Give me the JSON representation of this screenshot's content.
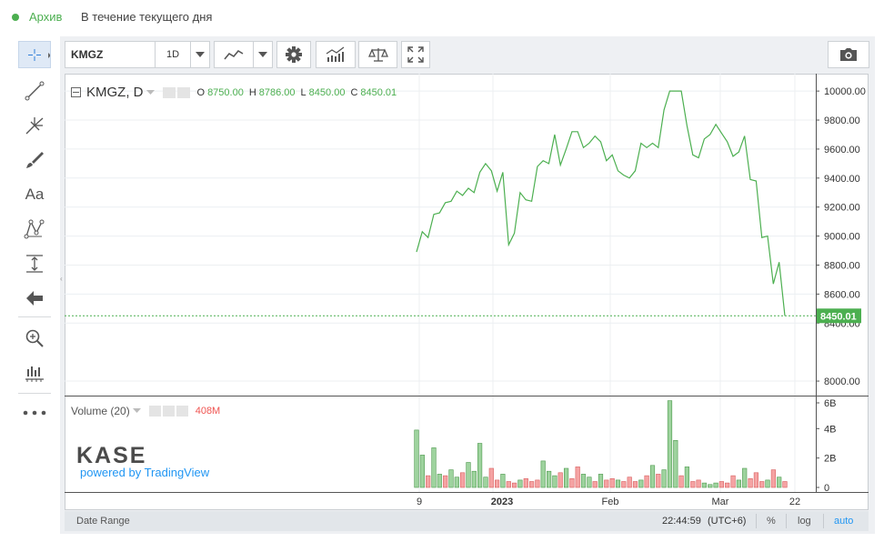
{
  "status": {
    "label": "Архив",
    "description": "В течение текущего дня"
  },
  "toolbar": {
    "symbol": "KMGZ",
    "interval": "1D"
  },
  "legend": {
    "title": "KMGZ, D",
    "o_label": "O",
    "o_value": "8750.00",
    "h_label": "H",
    "h_value": "8786.00",
    "l_label": "L",
    "l_value": "8450.00",
    "c_label": "C",
    "c_value": "8450.01"
  },
  "volume": {
    "label": "Volume (20)",
    "value": "408M"
  },
  "watermark": {
    "logo": "KASE",
    "powered": "powered by TradingView"
  },
  "price_axis": {
    "ticks": [
      "10000.00",
      "9800.00",
      "9600.00",
      "9400.00",
      "9200.00",
      "9000.00",
      "8800.00",
      "8600.00",
      "8400.00",
      "8000.00"
    ],
    "last": "8450.01"
  },
  "volume_axis": {
    "ticks": [
      "6B",
      "4B",
      "2B",
      "0"
    ]
  },
  "time_axis": {
    "ticks": [
      "9",
      "2023",
      "Feb",
      "Mar",
      "22"
    ]
  },
  "footer": {
    "date_range": "Date Range",
    "time": "22:44:59",
    "tz": "(UTC+6)",
    "pct": "%",
    "log": "log",
    "auto": "auto"
  },
  "colors": {
    "line": "#4caf50",
    "up": "#4caf50",
    "down": "#ef5350",
    "accent": "#2196f3"
  },
  "chart_data": {
    "type": "line",
    "price_series": [
      8890,
      9030,
      8990,
      9150,
      9160,
      9230,
      9240,
      9310,
      9280,
      9330,
      9300,
      9440,
      9500,
      9450,
      9310,
      9440,
      8940,
      9020,
      9300,
      9250,
      9240,
      9480,
      9520,
      9500,
      9700,
      9490,
      9600,
      9720,
      9720,
      9610,
      9640,
      9690,
      9650,
      9520,
      9560,
      9450,
      9420,
      9400,
      9450,
      9640,
      9610,
      9640,
      9610,
      9870,
      10000,
      10000,
      10000,
      9760,
      9560,
      9540,
      9670,
      9700,
      9770,
      9710,
      9650,
      9550,
      9580,
      9690,
      9390,
      9380,
      8990,
      9000,
      8670,
      8820,
      8450
    ],
    "volume_series": [
      3.9,
      2.2,
      0.8,
      2.7,
      0.9,
      0.8,
      1.2,
      0.7,
      1.0,
      1.7,
      1.1,
      3.0,
      0.7,
      1.3,
      0.5,
      0.9,
      0.4,
      0.3,
      0.5,
      0.6,
      0.4,
      0.5,
      1.8,
      1.1,
      0.8,
      1.0,
      1.3,
      0.6,
      1.4,
      0.9,
      0.7,
      0.4,
      0.9,
      0.5,
      0.6,
      0.5,
      0.4,
      0.7,
      0.4,
      0.5,
      0.8,
      1.5,
      0.9,
      1.2,
      5.9,
      3.2,
      0.8,
      1.4,
      0.4,
      0.5,
      0.3,
      0.2,
      0.3,
      0.4,
      0.3,
      0.8,
      0.5,
      1.3,
      0.6,
      1.0,
      0.4,
      0.5,
      1.2,
      0.7,
      0.4
    ],
    "volume_up": [
      1,
      1,
      0,
      1,
      1,
      0,
      1,
      1,
      0,
      1,
      1,
      1,
      1,
      0,
      0,
      1,
      0,
      0,
      1,
      0,
      0,
      0,
      1,
      1,
      1,
      0,
      1,
      0,
      0,
      1,
      1,
      0,
      1,
      0,
      0,
      1,
      0,
      0,
      0,
      1,
      0,
      1,
      0,
      1,
      1,
      1,
      0,
      1,
      0,
      0,
      1,
      1,
      1,
      0,
      0,
      0,
      1,
      1,
      0,
      0,
      0,
      1,
      0,
      1,
      0
    ],
    "ylim": [
      7900,
      10120
    ],
    "vol_ylim": [
      0,
      6
    ],
    "ylabel": "",
    "xlabel": ""
  }
}
